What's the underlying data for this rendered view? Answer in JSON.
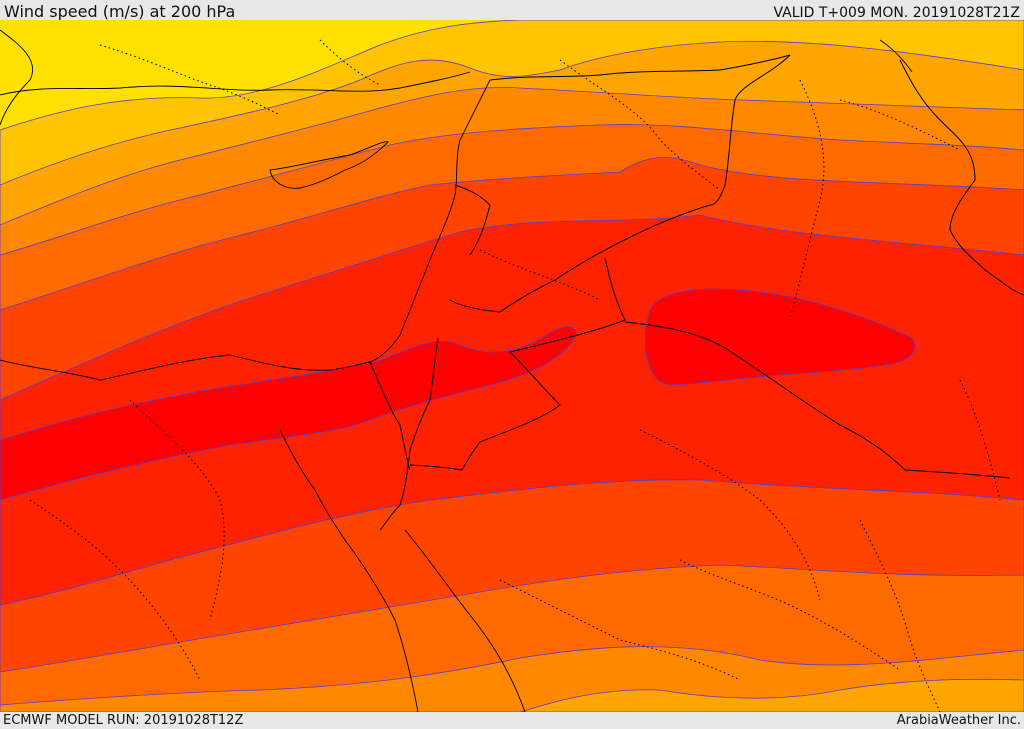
{
  "header": {
    "title": "Wind speed (m/s) at 200 hPa",
    "valid": "VALID T+009 MON. 20191028T21Z"
  },
  "footer": {
    "model_run": "ECMWF MODEL RUN: 20191028T12Z",
    "credit": "ArabiaWeather Inc."
  },
  "map": {
    "field": "wind speed at 200 hPa",
    "colors": {
      "weakest": "#ffe000",
      "weak": "#ffc400",
      "light": "#ffa500",
      "moderate": "#ff8800",
      "strong": "#ff6a00",
      "stronger": "#ff4400",
      "very_strong": "#ff2200",
      "jet_core": "#ff0000",
      "contour": "#5a3bd0",
      "borders": "#000000"
    }
  }
}
